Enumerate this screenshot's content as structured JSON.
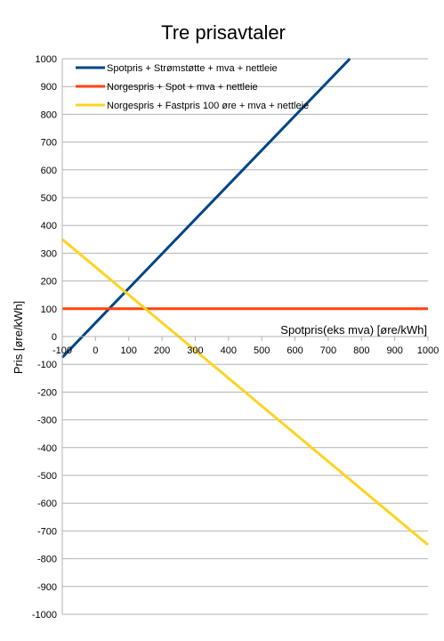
{
  "chart_data": {
    "type": "line",
    "title": "Tre prisavtaler",
    "xlabel": "Spotpris(eks mva) [øre/kWh]",
    "ylabel": "Pris [øre/kWh]",
    "xlim": [
      -100,
      1000
    ],
    "ylim": [
      -1000,
      1000
    ],
    "x_ticks": [
      -100,
      0,
      100,
      200,
      300,
      400,
      500,
      600,
      700,
      800,
      900,
      1000
    ],
    "y_ticks": [
      -1000,
      -900,
      -800,
      -700,
      -600,
      -500,
      -400,
      -300,
      -200,
      -100,
      0,
      100,
      200,
      300,
      400,
      500,
      600,
      700,
      800,
      900,
      1000
    ],
    "grid": "horizontal",
    "legend_position": "top-left",
    "series": [
      {
        "name": "Spotpris + Strømstøtte + mva + nettleie",
        "color": "#004586",
        "x": [
          -100,
          765
        ],
        "y": [
          -75,
          1000
        ]
      },
      {
        "name": "Norgespris + Spot + mva + nettleie",
        "color": "#ff420e",
        "x": [
          -100,
          1000
        ],
        "y": [
          100,
          100
        ]
      },
      {
        "name": "Norgespris + Fastpris 100 øre + mva + nettleie",
        "color": "#ffd320",
        "x": [
          -100,
          1000
        ],
        "y": [
          350,
          -750
        ]
      }
    ]
  }
}
